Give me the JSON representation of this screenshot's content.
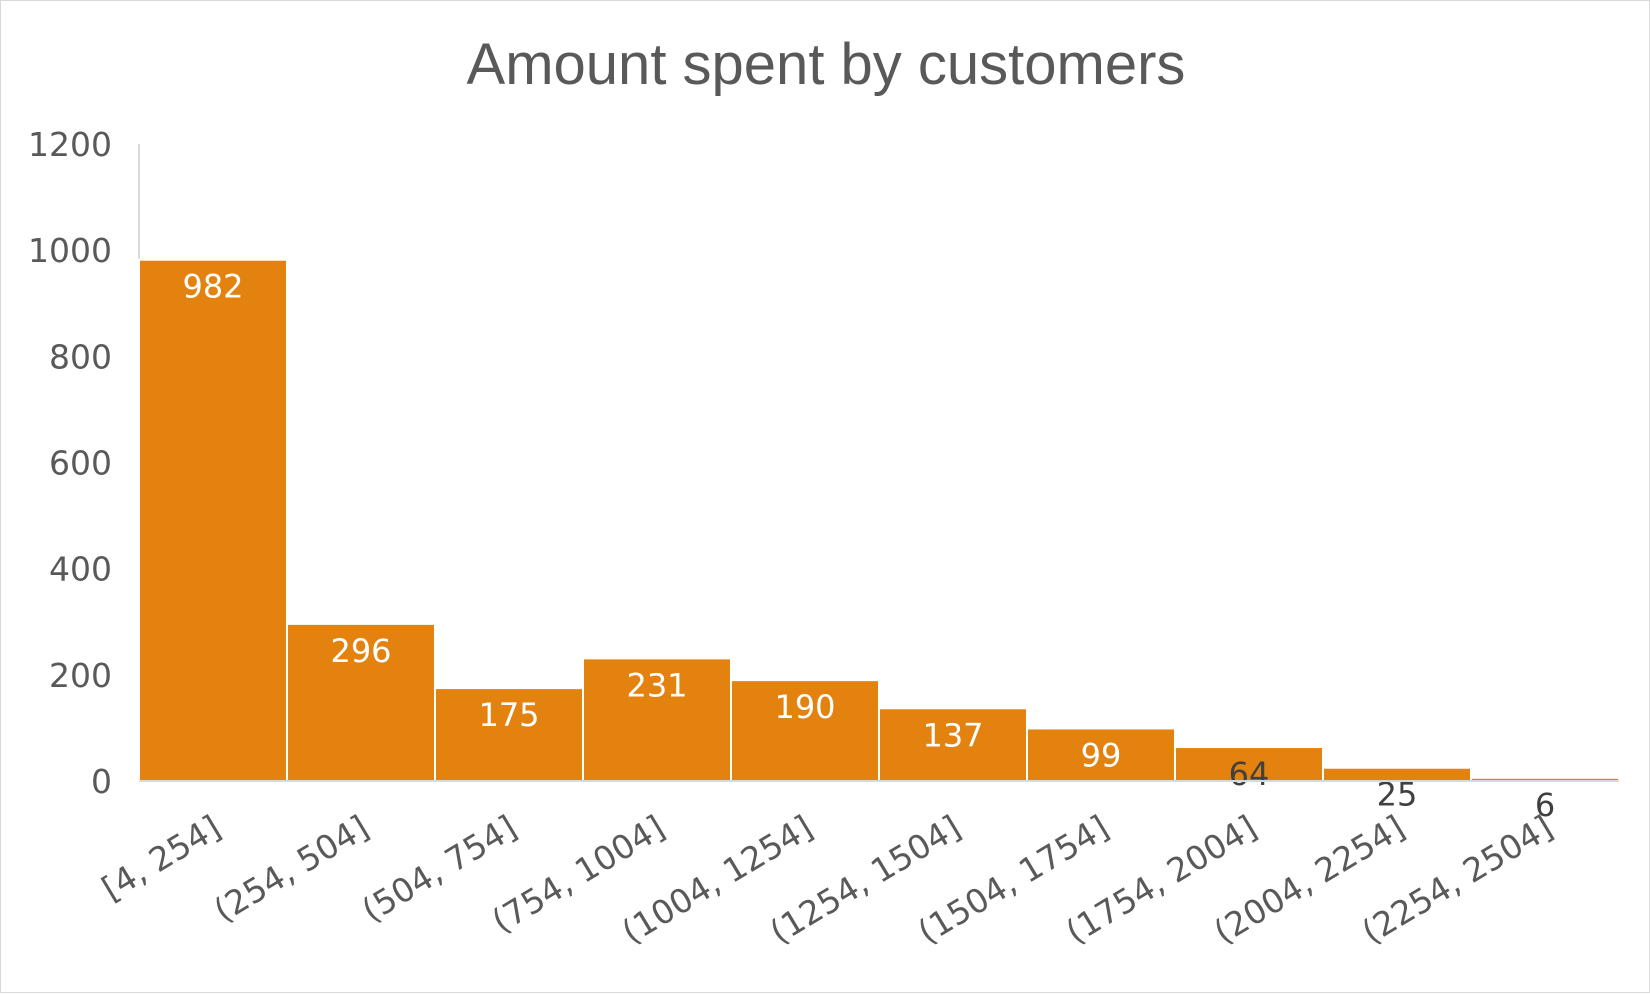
{
  "chart_data": {
    "type": "bar",
    "title": "Amount spent by customers",
    "xlabel": "",
    "ylabel": "",
    "categories": [
      "[4, 254]",
      "(254, 504]",
      "(504, 754]",
      "(754, 1004]",
      "(1004, 1254]",
      "(1254, 1504]",
      "(1504, 1754]",
      "(1754, 2004]",
      "(2004, 2254]",
      "(2254, 2504]"
    ],
    "values": [
      982,
      296,
      175,
      231,
      190,
      137,
      99,
      64,
      25,
      6
    ],
    "value_labels": [
      "982",
      "296",
      "175",
      "231",
      "190",
      "137",
      "99",
      "64",
      "25",
      "6"
    ],
    "ylim": [
      0,
      1200
    ],
    "y_ticks": [
      0,
      200,
      400,
      600,
      800,
      1000,
      1200
    ],
    "y_tick_labels": [
      "0",
      "200",
      "400",
      "600",
      "800",
      "1000",
      "1200"
    ],
    "grid": false,
    "legend": "none",
    "bar_color": "#E3820F",
    "bar_edge_color": "#ffffff",
    "label_color_inside": "#ffffff",
    "label_color_outside": "#404040",
    "text_color": "#595959",
    "axis_color": "#d9d9d9"
  }
}
